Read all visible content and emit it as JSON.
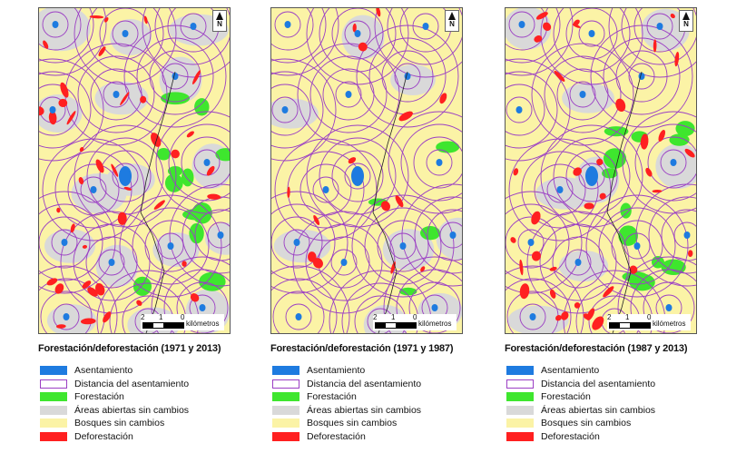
{
  "panels": [
    {
      "title": "Forestación/deforestación (1971 y 2013)"
    },
    {
      "title": "Forestación/deforestación (1971 y 1987)"
    },
    {
      "title": "Forestación/deforestación (1987 y 2013)"
    }
  ],
  "north_label": "N",
  "scale": {
    "ticks": [
      "2",
      "1",
      "0"
    ],
    "unit": "kilómetros"
  },
  "legend": [
    {
      "label": "Asentamiento",
      "color": "#1e7be0",
      "style": "fill"
    },
    {
      "label": "Distancia del asentamiento",
      "color": "#9b3fc4",
      "style": "outline"
    },
    {
      "label": "Forestación",
      "color": "#3ee62e",
      "style": "fill"
    },
    {
      "label": "Áreas abiertas sin cambios",
      "color": "#d9d9d9",
      "style": "fill"
    },
    {
      "label": "Bosques sin cambios",
      "color": "#fbf3a6",
      "style": "fill"
    },
    {
      "label": "Deforestación",
      "color": "#ff2020",
      "style": "fill"
    }
  ]
}
